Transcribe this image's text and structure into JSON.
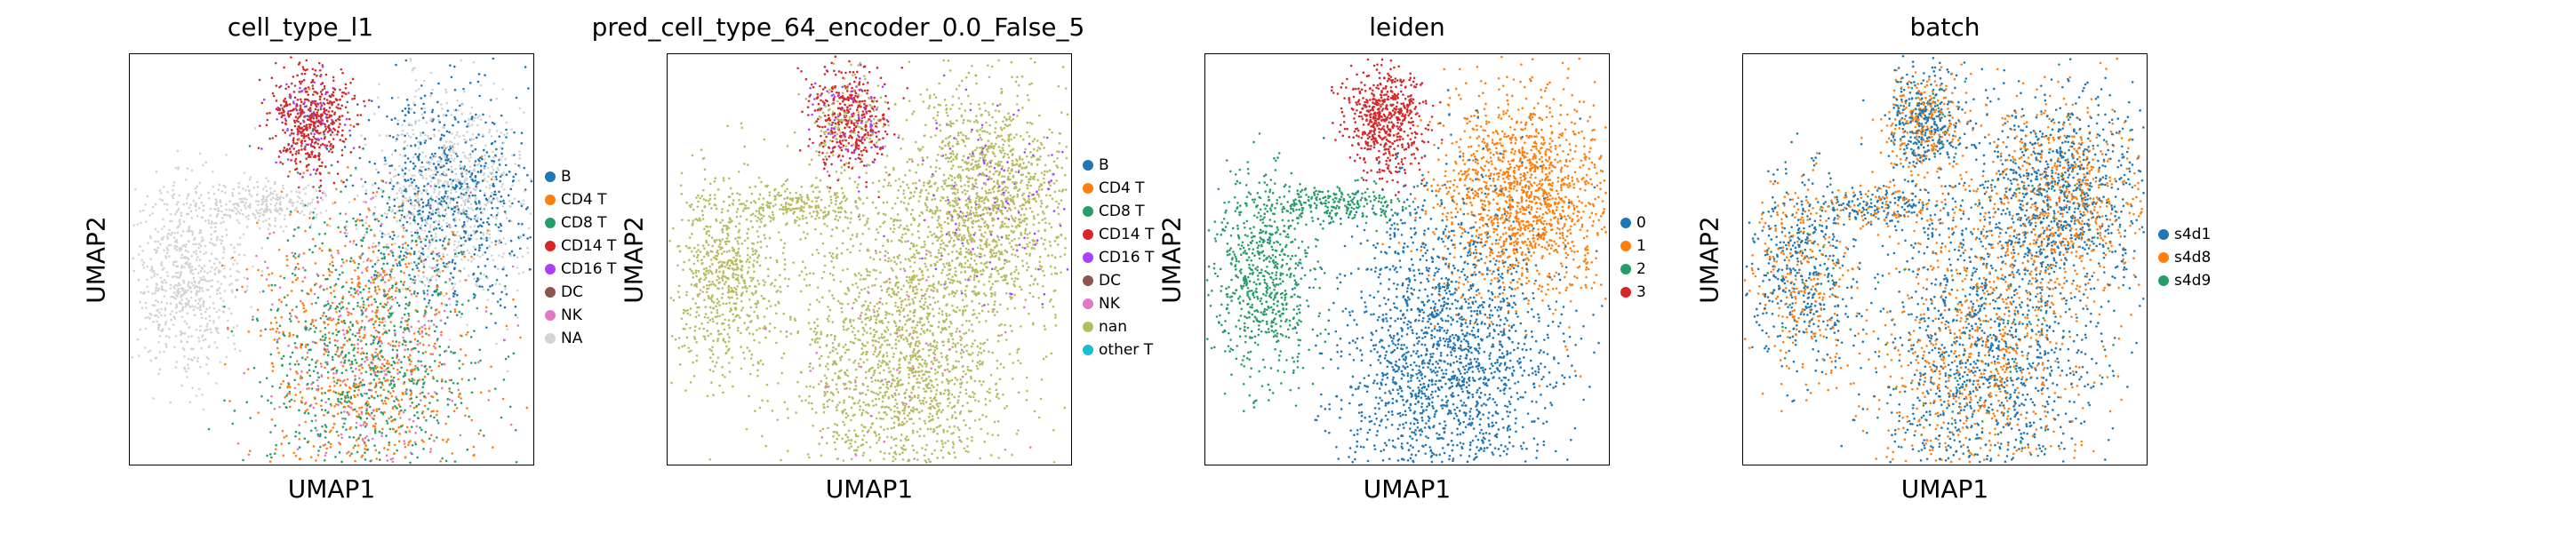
{
  "chart_data": [
    {
      "type": "scatter",
      "title": "cell_type_l1",
      "xlabel": "UMAP1",
      "ylabel": "UMAP2",
      "legend": "right",
      "categories": [
        {
          "name": "B",
          "color": "#1f77b4"
        },
        {
          "name": "CD4 T",
          "color": "#ff7f0e"
        },
        {
          "name": "CD8 T",
          "color": "#279e68"
        },
        {
          "name": "CD14 T",
          "color": "#d62728"
        },
        {
          "name": "CD16 T",
          "color": "#aa40fc"
        },
        {
          "name": "DC",
          "color": "#8c564b"
        },
        {
          "name": "NK",
          "color": "#e377c2"
        },
        {
          "name": "NA",
          "color": "#d3d3d3"
        }
      ]
    },
    {
      "type": "scatter",
      "title": "pred_cell_type_64_encoder_0.0_False_5",
      "xlabel": "UMAP1",
      "ylabel": "UMAP2",
      "legend": "right",
      "categories": [
        {
          "name": "B",
          "color": "#1f77b4"
        },
        {
          "name": "CD4 T",
          "color": "#ff7f0e"
        },
        {
          "name": "CD8 T",
          "color": "#279e68"
        },
        {
          "name": "CD14 T",
          "color": "#d62728"
        },
        {
          "name": "CD16 T",
          "color": "#aa40fc"
        },
        {
          "name": "DC",
          "color": "#8c564b"
        },
        {
          "name": "NK",
          "color": "#e377c2"
        },
        {
          "name": "nan",
          "color": "#b5bd61"
        },
        {
          "name": "other T",
          "color": "#17becf"
        }
      ]
    },
    {
      "type": "scatter",
      "title": "leiden",
      "xlabel": "UMAP1",
      "ylabel": "UMAP2",
      "legend": "right",
      "categories": [
        {
          "name": "0",
          "color": "#1f77b4"
        },
        {
          "name": "1",
          "color": "#ff7f0e"
        },
        {
          "name": "2",
          "color": "#279e68"
        },
        {
          "name": "3",
          "color": "#d62728"
        }
      ]
    },
    {
      "type": "scatter",
      "title": "batch",
      "xlabel": "UMAP1",
      "ylabel": "UMAP2",
      "legend": "right",
      "categories": [
        {
          "name": "s4d1",
          "color": "#1f77b4"
        },
        {
          "name": "s4d8",
          "color": "#ff7f0e"
        },
        {
          "name": "s4d9",
          "color": "#279e68"
        }
      ]
    }
  ]
}
